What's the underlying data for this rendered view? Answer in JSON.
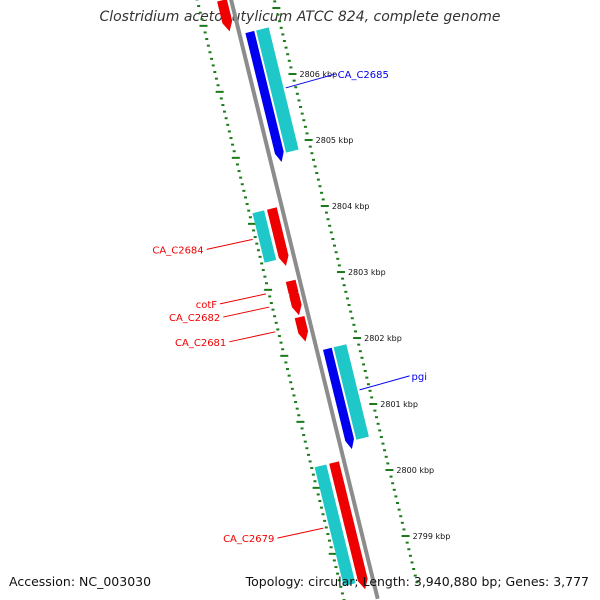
{
  "title": "Clostridium acetobutylicum ATCC 824, complete genome",
  "accession": "Accession: NC_003030",
  "topology_info": "Topology: circular; Length: 3,940,880 bp; Genes: 3,777",
  "colors": {
    "backbone": "#8c8c8c",
    "tick": "#1a7a1a",
    "cds_forward": "#0000ee",
    "cds_reverse": "#ee0000",
    "cds_forward_outer": "#1ec8c8",
    "cds_reverse_outer": "#1ec8c8"
  },
  "ticks": [
    {
      "label": "2806 kbp",
      "kbp": 2806
    },
    {
      "label": "2805 kbp",
      "kbp": 2805
    },
    {
      "label": "2804 kbp",
      "kbp": 2804
    },
    {
      "label": "2803 kbp",
      "kbp": 2803
    },
    {
      "label": "2802 kbp",
      "kbp": 2802
    },
    {
      "label": "2801 kbp",
      "kbp": 2801
    },
    {
      "label": "2800 kbp",
      "kbp": 2800
    },
    {
      "label": "2799 kbp",
      "kbp": 2799
    }
  ],
  "genes": [
    {
      "name": "CA_C2685",
      "strand": "forward",
      "start_kbp": 2806.75,
      "end_kbp": 2804.9,
      "labeled": true
    },
    {
      "name": "CA_C2684",
      "strand": "reverse",
      "start_kbp": 2804.15,
      "end_kbp": 2803.4,
      "labeled": true
    },
    {
      "name": "cotF",
      "strand": "reverse",
      "start_kbp": 2803.05,
      "end_kbp": 2802.85,
      "labeled": true
    },
    {
      "name": "CA_C2682",
      "strand": "reverse",
      "start_kbp": 2802.85,
      "end_kbp": 2802.65,
      "labeled": true
    },
    {
      "name": "CA_C2681",
      "strand": "reverse",
      "start_kbp": 2802.5,
      "end_kbp": 2802.25,
      "labeled": true
    },
    {
      "name": "pgi",
      "strand": "forward",
      "start_kbp": 2801.95,
      "end_kbp": 2800.55,
      "labeled": true
    },
    {
      "name": "CA_C2679",
      "strand": "reverse",
      "start_kbp": 2800.3,
      "end_kbp": 2798.5,
      "labeled": true
    },
    {
      "name": "",
      "strand": "reverse",
      "start_kbp": 2807.3,
      "end_kbp": 2806.95,
      "labeled": false
    }
  ]
}
